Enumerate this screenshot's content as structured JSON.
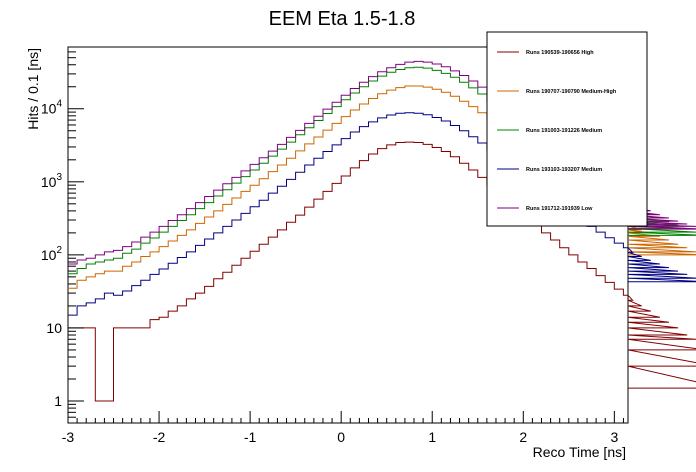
{
  "chart_data": {
    "type": "line",
    "title": "EEM Eta 1.5-1.8",
    "xlabel": "Reco Time [ns]",
    "ylabel": "Hits / 0.1 [ns]",
    "xlim": [
      -3,
      3.15
    ],
    "ylim": [
      0.5,
      70000
    ],
    "yscale": "log",
    "grid": false,
    "legend_position": "top-right",
    "x_ticks": [
      {
        "value": -3,
        "label": "-3"
      },
      {
        "value": -2,
        "label": "-2"
      },
      {
        "value": -1,
        "label": "-1"
      },
      {
        "value": 0,
        "label": "0"
      },
      {
        "value": 1,
        "label": "1"
      },
      {
        "value": 2,
        "label": "2"
      },
      {
        "value": 3,
        "label": "3"
      }
    ],
    "y_ticks": [
      {
        "value": 1,
        "base": "1",
        "exp": ""
      },
      {
        "value": 10,
        "base": "10",
        "exp": ""
      },
      {
        "value": 100,
        "base": "10",
        "exp": "2"
      },
      {
        "value": 1000,
        "base": "10",
        "exp": "3"
      },
      {
        "value": 10000,
        "base": "10",
        "exp": "4"
      }
    ],
    "bin_width": 0.1,
    "x_start": -3.0,
    "series": [
      {
        "name": "Runs 190539-190656 High",
        "color": "#800000",
        "values": [
          10,
          10,
          10,
          1,
          1,
          10,
          10,
          10,
          10,
          13,
          14,
          17,
          20,
          25,
          30,
          37,
          47,
          58,
          72,
          90,
          112,
          140,
          175,
          220,
          280,
          350,
          450,
          580,
          740,
          950,
          1200,
          1550,
          1950,
          2400,
          2850,
          3200,
          3450,
          3500,
          3450,
          3250,
          2950,
          2600,
          2200,
          1800,
          1450,
          1150,
          900,
          700,
          540,
          420,
          330,
          260,
          200,
          160,
          125,
          100,
          80,
          65,
          52,
          42,
          34,
          28,
          24,
          20,
          17,
          14,
          12,
          10,
          8,
          7,
          5,
          3,
          1.5
        ]
      },
      {
        "name": "Runs 190707-190790 Medium-High",
        "color": "#CC6600",
        "values": [
          35,
          45,
          50,
          55,
          60,
          60,
          70,
          80,
          95,
          110,
          130,
          155,
          185,
          220,
          270,
          330,
          400,
          490,
          600,
          740,
          900,
          1100,
          1380,
          1700,
          2100,
          2650,
          3300,
          4100,
          5100,
          6300,
          7800,
          9600,
          11600,
          13800,
          16000,
          18000,
          19500,
          20500,
          20500,
          19800,
          18500,
          16800,
          14800,
          12700,
          10700,
          8800,
          7100,
          5650,
          4450,
          3500,
          2750,
          2150,
          1700,
          1350,
          1080,
          870,
          710,
          580,
          480,
          400,
          340,
          290,
          250,
          220,
          200,
          180,
          160,
          140,
          125,
          110,
          100
        ]
      },
      {
        "name": "Runs 191003-191226 Medium",
        "color": "#008000",
        "values": [
          55,
          65,
          75,
          80,
          85,
          90,
          105,
          120,
          145,
          170,
          205,
          245,
          295,
          355,
          430,
          520,
          640,
          780,
          960,
          1180,
          1450,
          1800,
          2250,
          2800,
          3500,
          4400,
          5500,
          6900,
          8600,
          10700,
          13300,
          16400,
          20000,
          24000,
          28000,
          31500,
          34500,
          36500,
          37000,
          36000,
          33500,
          30500,
          27000,
          23000,
          19300,
          15900,
          12800,
          10200,
          8000,
          6250,
          4900,
          3850,
          3050,
          2420,
          1950,
          1580,
          1290,
          1060,
          880,
          740,
          630,
          540,
          470,
          410,
          360,
          320,
          285,
          255,
          230,
          205,
          185
        ]
      },
      {
        "name": "Runs 193103-193207 Medium",
        "color": "#000080",
        "values": [
          15,
          20,
          22,
          25,
          30,
          28,
          32,
          38,
          45,
          54,
          64,
          77,
          92,
          110,
          135,
          165,
          200,
          245,
          300,
          370,
          455,
          560,
          700,
          870,
          1080,
          1350,
          1700,
          2100,
          2600,
          3200,
          3900,
          4800,
          5700,
          6600,
          7500,
          8200,
          8700,
          8800,
          8700,
          8300,
          7600,
          6800,
          5900,
          5000,
          4150,
          3400,
          2750,
          2200,
          1750,
          1380,
          1090,
          860,
          690,
          550,
          445,
          360,
          295,
          245,
          205,
          172,
          145,
          125,
          108,
          95,
          84,
          75,
          67,
          60,
          54,
          48,
          43
        ]
      },
      {
        "name": "Runs 191712-191939 Low",
        "color": "#800080",
        "values": [
          75,
          85,
          90,
          100,
          110,
          115,
          130,
          150,
          175,
          205,
          245,
          295,
          355,
          430,
          520,
          630,
          770,
          940,
          1150,
          1410,
          1730,
          2130,
          2630,
          3250,
          4050,
          5050,
          6300,
          7900,
          9900,
          12300,
          15300,
          18900,
          23000,
          27500,
          32000,
          36500,
          40500,
          43500,
          44500,
          43500,
          41000,
          37500,
          33000,
          28500,
          24000,
          19800,
          16000,
          12800,
          10100,
          7900,
          6150,
          4800,
          3750,
          2950,
          2330,
          1860,
          1500,
          1220,
          1000,
          830,
          700,
          600,
          520,
          455,
          400,
          355,
          320,
          290,
          265,
          245,
          225
        ]
      }
    ]
  }
}
